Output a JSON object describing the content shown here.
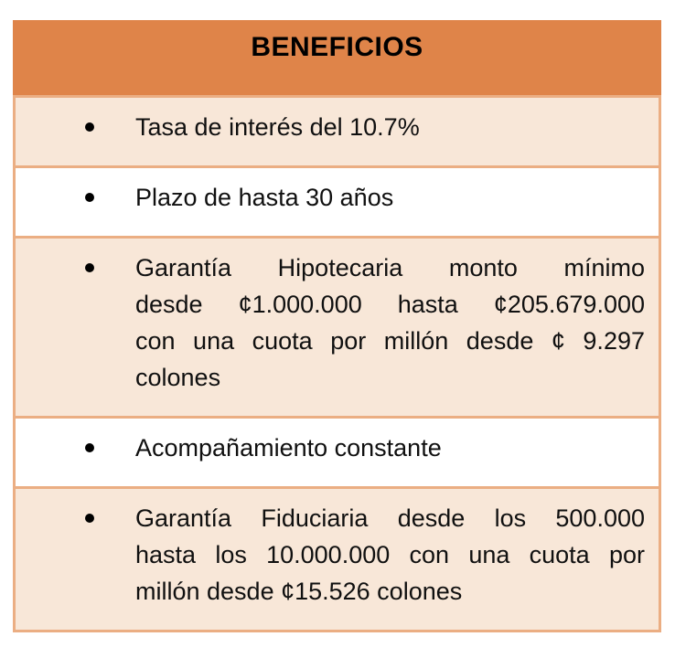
{
  "document": {
    "title": "BENEFICIOS",
    "benefits": [
      {
        "shaded": true,
        "lines": [
          "Tasa de interés del 10.7%"
        ]
      },
      {
        "shaded": false,
        "lines": [
          "Plazo de hasta 30 años"
        ]
      },
      {
        "shaded": true,
        "lines": [
          "Garantía Hipotecaria monto mínimo",
          "desde ¢1.000.000 hasta ¢205.679.000",
          "con una cuota por millón desde ¢ 9.297",
          "colones"
        ]
      },
      {
        "shaded": false,
        "lines": [
          "Acompañamiento constante"
        ]
      },
      {
        "shaded": true,
        "lines": [
          "Garantía Fiduciaria desde los 500.000",
          "hasta los 10.000.000 con una cuota por",
          "millón desde ¢15.526 colones"
        ]
      }
    ]
  },
  "colors": {
    "header_bg": "#DF8449",
    "border": "#EBAE83",
    "shaded_row_bg": "#F8E7D8",
    "plain_row_bg": "#FFFFFF",
    "text": "#101010",
    "bullet": "#000000"
  }
}
